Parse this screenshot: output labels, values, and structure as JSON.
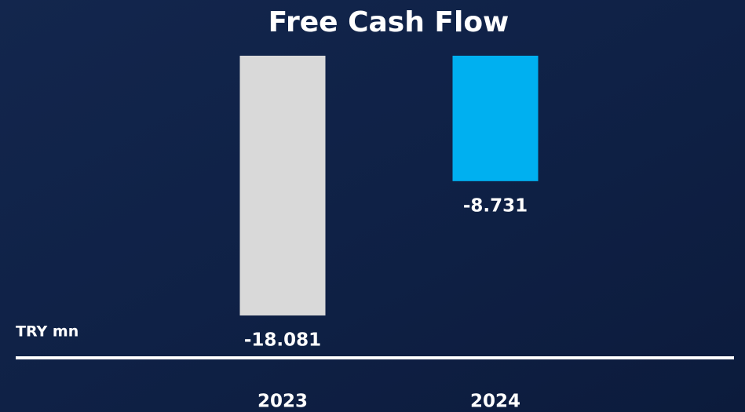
{
  "chart_data": {
    "type": "bar",
    "title": "Free Cash Flow",
    "unit_label": "TRY mn",
    "categories": [
      "2023",
      "2024"
    ],
    "values": [
      -18081,
      -8731
    ],
    "value_labels": [
      "-18.081",
      "-8.731"
    ],
    "colors": [
      "#d9d9d9",
      "#00b0f0"
    ]
  }
}
